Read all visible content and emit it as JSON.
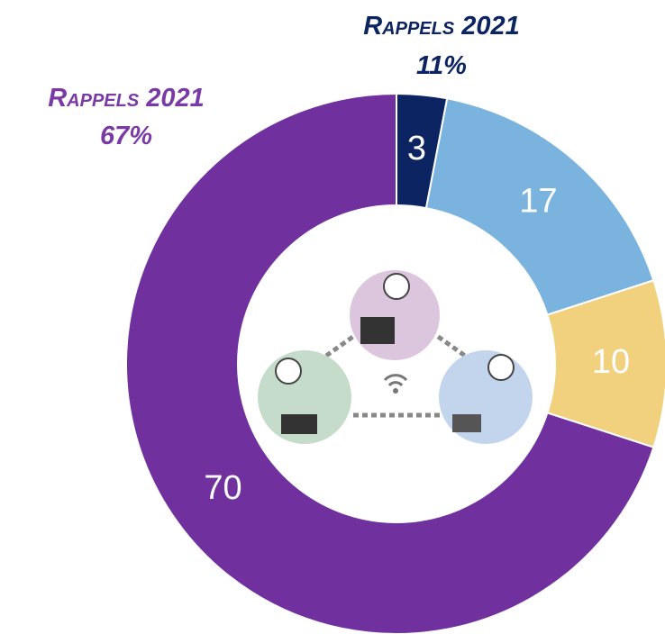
{
  "chart_data": {
    "type": "donut",
    "categories": [
      null,
      null,
      null,
      null
    ],
    "values": [
      3,
      17,
      10,
      70
    ],
    "colors": [
      "#0c2461",
      "#7ab3de",
      "#f2d17e",
      "#70309e"
    ],
    "annotations": [
      {
        "text": "Rappels 2021",
        "value_label": "11%",
        "color": "#0c2461"
      },
      {
        "text": "Rappels 2021",
        "value_label": "67%",
        "color": "#7a3aa6"
      }
    ]
  }
}
